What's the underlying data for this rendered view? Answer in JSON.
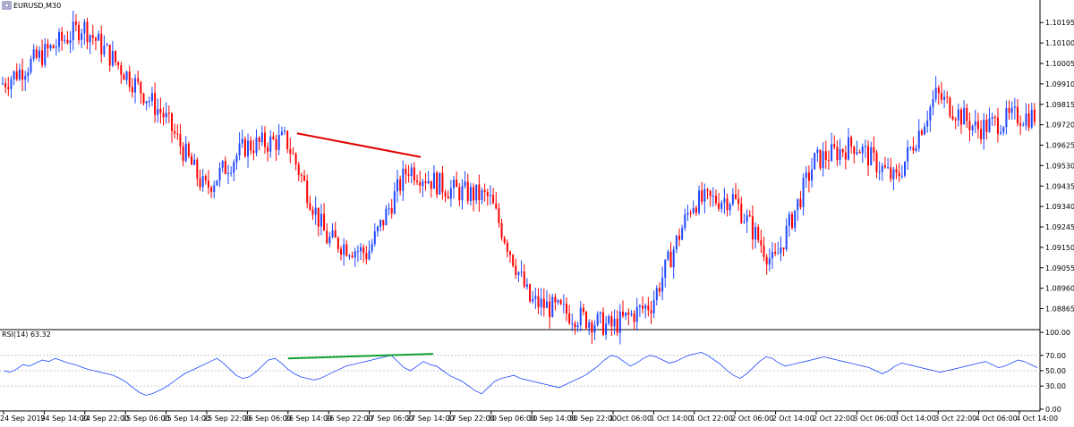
{
  "window": {
    "title": "EURUSD,M30",
    "icon_name": "window-restore-icon"
  },
  "colors": {
    "bull": "#1f47ff",
    "bear": "#ff0000",
    "rsi_line": "#1f47ff",
    "price_trendline": "#e00000",
    "rsi_trendline": "#10a030",
    "grid": "#c8c8c8",
    "axis": "#000000"
  },
  "chart_data": [
    {
      "type": "candlestick",
      "title": "EURUSD,M30",
      "y_axis_ticks": [
        "1.10195",
        "1.10100",
        "1.10005",
        "1.09910",
        "1.09815",
        "1.09720",
        "1.09625",
        "1.09530",
        "1.09435",
        "1.09340",
        "1.09245",
        "1.09150",
        "1.09055",
        "1.08960",
        "1.08865"
      ],
      "ylim": [
        1.0878,
        1.1025
      ],
      "grid": false,
      "key_prices": [
        {
          "label": "24 Sep 2019",
          "price": 1.0991
        },
        {
          "label": "24 Sep 22:00",
          "price": 1.1018
        },
        {
          "label": "25 Sep 14:00",
          "price": 1.0976
        },
        {
          "label": "25 Sep 22:00",
          "price": 1.0942
        },
        {
          "label": "26 Sep 06:00",
          "price": 1.0962
        },
        {
          "label": "26 Sep 14:00",
          "price": 1.0965
        },
        {
          "label": "26 Sep 22:00",
          "price": 1.0919
        },
        {
          "label": "27 Sep 06:00",
          "price": 1.0912
        },
        {
          "label": "27 Sep 14:00",
          "price": 1.0952
        },
        {
          "label": "27 Sep 22:00",
          "price": 1.0942
        },
        {
          "label": "30 Sep 06:00",
          "price": 1.0938
        },
        {
          "label": "30 Sep 14:00",
          "price": 1.089
        },
        {
          "label": "1 Oct 06:00",
          "price": 1.0878
        },
        {
          "label": "1 Oct 14:00",
          "price": 1.0889
        },
        {
          "label": "1 Oct 22:00",
          "price": 1.0936
        },
        {
          "label": "2 Oct 06:00",
          "price": 1.0938
        },
        {
          "label": "2 Oct 14:00",
          "price": 1.0907
        },
        {
          "label": "2 Oct 22:00",
          "price": 1.0955
        },
        {
          "label": "3 Oct 06:00",
          "price": 1.0963
        },
        {
          "label": "3 Oct 14:00",
          "price": 1.0946
        },
        {
          "label": "3 Oct 22:00",
          "price": 1.0986
        },
        {
          "label": "4 Oct 06:00",
          "price": 1.097
        },
        {
          "label": "4 Oct 14:00",
          "price": 1.0976
        }
      ],
      "trendline": {
        "from_price": 1.0968,
        "to_price": 1.0957,
        "from_label": "26 Sep 14:00",
        "to_label": "27 Sep 14:00"
      }
    },
    {
      "type": "line",
      "title": "RSI(14) 63.32",
      "y_axis_ticks": [
        "100.00",
        "70.00",
        "50.00",
        "30.00",
        "0.00"
      ],
      "ylim": [
        0,
        100
      ],
      "levels": [
        70,
        50,
        30
      ],
      "series": [
        {
          "values": [
            50,
            48,
            52,
            58,
            56,
            60,
            64,
            62,
            66,
            63,
            60,
            58,
            55,
            52,
            50,
            48,
            46,
            44,
            40,
            35,
            28,
            22,
            18,
            20,
            24,
            28,
            34,
            40,
            46,
            50,
            54,
            58,
            62,
            66,
            60,
            52,
            44,
            40,
            42,
            48,
            56,
            64,
            66,
            60,
            52,
            46,
            42,
            40,
            38,
            40,
            44,
            48,
            52,
            56,
            58,
            60,
            62,
            64,
            66,
            68,
            70,
            62,
            54,
            50,
            56,
            62,
            58,
            56,
            50,
            44,
            40,
            36,
            30,
            24,
            20,
            28,
            36,
            40,
            42,
            44,
            40,
            38,
            36,
            34,
            32,
            30,
            28,
            32,
            36,
            40,
            44,
            50,
            56,
            64,
            70,
            68,
            62,
            56,
            60,
            66,
            70,
            68,
            64,
            60,
            62,
            66,
            70,
            72,
            74,
            70,
            64,
            58,
            50,
            44,
            40,
            46,
            54,
            62,
            68,
            66,
            60,
            56,
            58,
            60,
            62,
            64,
            66,
            68,
            66,
            64,
            62,
            60,
            58,
            56,
            54,
            50,
            46,
            50,
            56,
            60,
            58,
            56,
            54,
            52,
            50,
            48,
            50,
            52,
            54,
            56,
            58,
            60,
            62,
            58,
            54,
            56,
            60,
            64,
            62,
            58,
            54
          ],
          "x_range": [
            "24 Sep 2019",
            "4 Oct 14:00"
          ]
        }
      ],
      "trendline": {
        "from_value": 66,
        "to_value": 72,
        "from_label": "26 Sep 14:00",
        "to_label": "27 Sep 14:00"
      }
    }
  ],
  "x_axis_labels": [
    "24 Sep 2019",
    "24 Sep 14:00",
    "24 Sep 22:00",
    "25 Sep 06:00",
    "25 Sep 14:00",
    "25 Sep 22:00",
    "26 Sep 06:00",
    "26 Sep 14:00",
    "26 Sep 22:00",
    "27 Sep 06:00",
    "27 Sep 14:00",
    "27 Sep 22:00",
    "30 Sep 06:00",
    "30 Sep 14:00",
    "30 Sep 22:00",
    "1 Oct 06:00",
    "1 Oct 14:00",
    "1 Oct 22:00",
    "2 Oct 06:00",
    "2 Oct 14:00",
    "2 Oct 22:00",
    "3 Oct 06:00",
    "3 Oct 14:00",
    "3 Oct 22:00",
    "4 Oct 06:00",
    "4 Oct 14:00"
  ]
}
